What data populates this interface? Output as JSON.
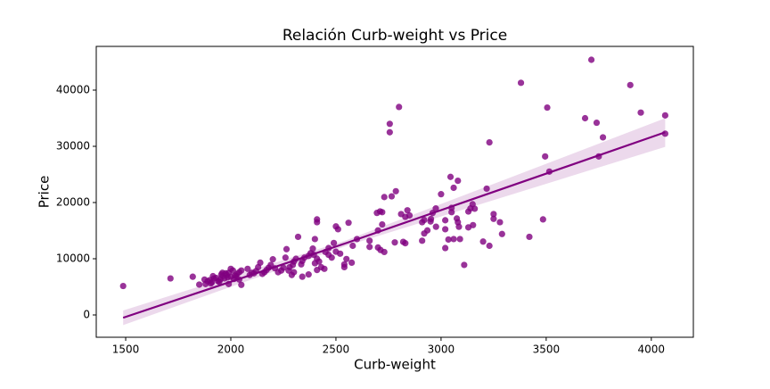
{
  "chart_data": {
    "type": "scatter",
    "title": "Relación Curb-weight vs Price",
    "x_label": "Curb-weight",
    "y_label": "Price",
    "color": "#800080",
    "x": [
      1488,
      1713,
      1819,
      2756,
      2756,
      2800,
      3380,
      3715,
      3900,
      3950,
      4066,
      4066,
      3505,
      3685,
      3740,
      3770,
      3750,
      3230,
      3495,
      3515,
      3217,
      3045,
      3060,
      3080,
      3000,
      2785,
      2765,
      2730,
      2710,
      2720,
      2695,
      2830,
      2850,
      2840,
      2810,
      2910,
      2920,
      2950,
      2976,
      2952,
      2975,
      2960,
      3020,
      3050,
      3050,
      3075,
      3080,
      3130,
      3140,
      3150,
      3160,
      3152,
      3130,
      3085,
      3020,
      3060,
      3090,
      3035,
      2935,
      2920,
      2910,
      3020,
      3110,
      3200,
      3230,
      3250,
      3250,
      3280,
      3290,
      3420,
      3485,
      2660,
      2660,
      2700,
      2712,
      2730,
      2780,
      2830,
      2820,
      2700,
      2720,
      2600,
      2580,
      2560,
      2500,
      2510,
      2490,
      2450,
      2465,
      2480,
      2465,
      2500,
      2520,
      2540,
      2540,
      2550,
      2575,
      2410,
      2410,
      2400,
      2390,
      2380,
      2395,
      2410,
      2420,
      2400,
      2430,
      2445,
      2410,
      2370,
      2350,
      2340,
      2335,
      2320,
      2340,
      2370,
      2310,
      2300,
      2295,
      2280,
      2275,
      2260,
      2265,
      2250,
      2240,
      2225,
      2210,
      2290,
      2300,
      2200,
      2190,
      2180,
      2170,
      2160,
      2150,
      2140,
      2130,
      2120,
      2110,
      2100,
      2090,
      2080,
      2050,
      2040,
      2030,
      2020,
      2040,
      2050,
      2010,
      2000,
      1990,
      1980,
      1985,
      1975,
      1970,
      1960,
      1955,
      1950,
      1940,
      1930,
      1920,
      1915,
      1905,
      1900,
      1890,
      1880,
      1875,
      1850,
      1990,
      2000,
      2015,
      2025,
      1945,
      1910,
      1960
    ],
    "y": [
      5150,
      6500,
      6800,
      34000,
      32500,
      37000,
      41300,
      45400,
      40900,
      36000,
      35500,
      32250,
      36900,
      35000,
      34200,
      31600,
      28200,
      30700,
      28200,
      25500,
      22470,
      24565,
      22625,
      23875,
      21485,
      22018,
      21105,
      20970,
      18420,
      18280,
      18150,
      17450,
      17710,
      18620,
      17950,
      16500,
      16900,
      16630,
      15690,
      17075,
      18950,
      18150,
      16845,
      19045,
      18280,
      17160,
      16500,
      18400,
      18950,
      19700,
      18900,
      15985,
      15580,
      15690,
      15250,
      13500,
      13500,
      13415,
      15040,
      14490,
      13200,
      11900,
      8900,
      13050,
      12300,
      17100,
      17950,
      16500,
      14400,
      13900,
      17000,
      13200,
      12100,
      12000,
      11550,
      11200,
      12900,
      12760,
      13000,
      15040,
      16100,
      13500,
      12300,
      16400,
      15750,
      15250,
      12800,
      11200,
      10700,
      10200,
      11900,
      11250,
      10900,
      9000,
      8500,
      9950,
      9300,
      17000,
      16500,
      13500,
      11800,
      11000,
      10700,
      10000,
      9500,
      9200,
      8500,
      8200,
      8000,
      10500,
      10200,
      9600,
      9000,
      13900,
      6800,
      7200,
      10000,
      9500,
      8900,
      8500,
      7900,
      10200,
      11700,
      8400,
      7900,
      7600,
      8300,
      7100,
      7600,
      9900,
      8900,
      8400,
      8000,
      7600,
      7300,
      9300,
      8500,
      7800,
      7400,
      7500,
      7100,
      8200,
      7900,
      7600,
      7300,
      7000,
      6300,
      5350,
      7900,
      8200,
      7500,
      7100,
      6700,
      7400,
      6500,
      6900,
      7200,
      6300,
      6000,
      6600,
      6500,
      6900,
      5600,
      6200,
      6000,
      5500,
      6300,
      5400,
      5500,
      6800,
      6400,
      6900,
      5900,
      5800,
      7500
    ],
    "fit": {
      "x": [
        1488,
        2550,
        4066
      ],
      "y": [
        -500,
        12800,
        32500
      ],
      "lower": [
        -1800,
        12300,
        29900
      ],
      "upper": [
        800,
        13300,
        35000
      ]
    },
    "xlim": [
      1360,
      4200
    ],
    "ylim": [
      -3970,
      47780
    ],
    "xticks": [
      1500,
      2000,
      2500,
      3000,
      3500,
      4000
    ],
    "yticks": [
      0,
      10000,
      20000,
      30000,
      40000
    ]
  }
}
